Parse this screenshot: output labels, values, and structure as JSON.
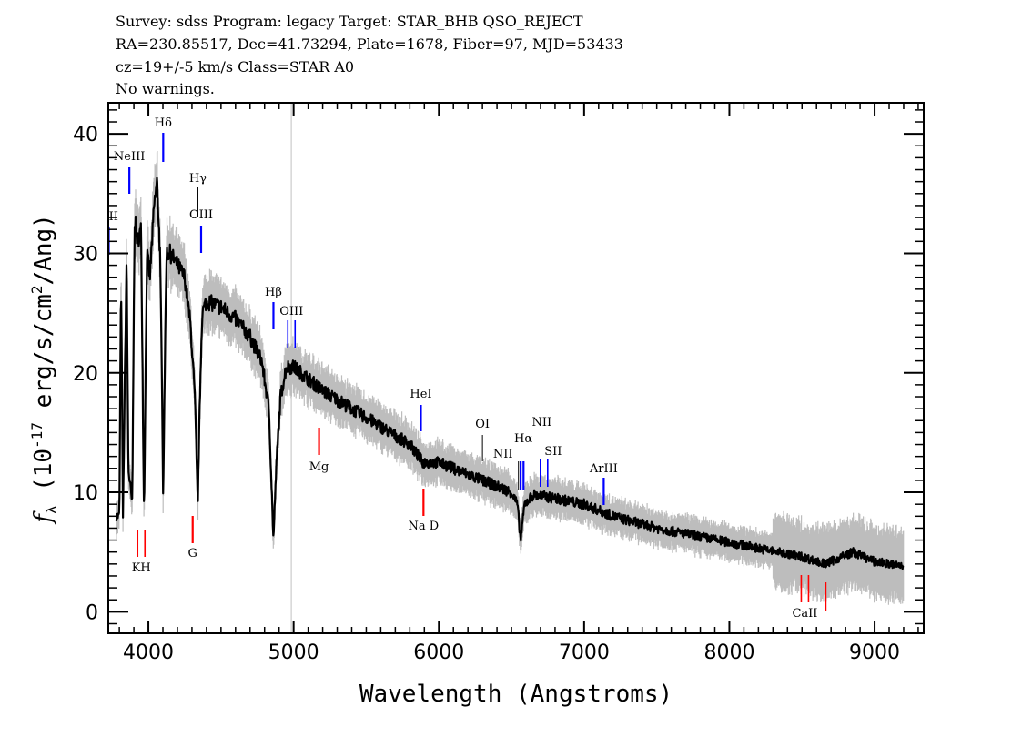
{
  "header": {
    "line1": "Survey: sdss Program: legacy Target: STAR_BHB QSO_REJECT",
    "line2": "RA=230.85517, Dec=41.73294, Plate=1678, Fiber=97, MJD=53433",
    "line3": "cz=19+/-5 km/s Class=STAR A0",
    "line4": "No warnings."
  },
  "chart_data": {
    "type": "line",
    "xlabel": "Wavelength (Angstroms)",
    "ylabel": "f_λ (10^-17 erg/s/cm^2/Ang)",
    "xlim": [
      3724,
      9338
    ],
    "ylim": [
      -1.8,
      42.6
    ],
    "xticks": [
      4000,
      5000,
      6000,
      7000,
      8000,
      9000
    ],
    "yticks": [
      0,
      10,
      20,
      30,
      40
    ],
    "grid": false,
    "colors": {
      "spectrum": "#000000",
      "error_band": "#bdbdbd",
      "emission": "#0000ff",
      "absorption": "#ff0000",
      "reference_line": "#c0c0c0"
    },
    "reference_line_x": 4984,
    "spectrum": {
      "x": [
        3780,
        3800,
        3812,
        3825,
        3850,
        3862,
        3889,
        3905,
        3925,
        3950,
        3970,
        3990,
        4010,
        4040,
        4060,
        4080,
        4095,
        4102,
        4110,
        4125,
        4150,
        4200,
        4250,
        4290,
        4320,
        4340,
        4355,
        4370,
        4400,
        4500,
        4600,
        4700,
        4780,
        4830,
        4861,
        4880,
        4910,
        4950,
        5000,
        5100,
        5200,
        5400,
        5600,
        5800,
        5890,
        6000,
        6200,
        6400,
        6500,
        6540,
        6563,
        6590,
        6650,
        6800,
        7000,
        7200,
        7500,
        8000,
        8500,
        8660,
        8850,
        9000,
        9200
      ],
      "y": [
        8,
        8,
        28,
        8,
        30,
        12,
        9,
        33,
        31,
        32,
        8,
        30,
        28,
        34,
        36,
        30,
        18,
        9,
        18,
        30,
        30,
        29,
        28,
        24,
        18,
        9,
        18,
        25,
        26,
        25.5,
        24.5,
        23,
        21,
        17,
        6,
        12,
        18,
        20.5,
        20.5,
        19.5,
        18.5,
        17,
        15.5,
        14,
        12.5,
        12.5,
        11.5,
        10.5,
        10,
        9,
        6,
        9,
        9.8,
        9.5,
        9,
        8,
        7,
        5.8,
        4.6,
        4,
        5,
        4.2,
        3.8
      ]
    },
    "lines": [
      {
        "label": "OII",
        "wavelength": 3727,
        "kind": "emission"
      },
      {
        "label": "NeIII",
        "wavelength": 3869,
        "kind": "emission"
      },
      {
        "label": "Hδ",
        "wavelength": 4102,
        "kind": "emission"
      },
      {
        "label": "Hγ",
        "wavelength": 4341,
        "kind": "emission-thin"
      },
      {
        "label": "OIII",
        "wavelength": 4363,
        "kind": "emission"
      },
      {
        "label": "Hβ",
        "wavelength": 4861,
        "kind": "emission"
      },
      {
        "label": "OIII",
        "wavelength": 4985,
        "kind": "emission-pair"
      },
      {
        "label": "HeI",
        "wavelength": 5876,
        "kind": "emission"
      },
      {
        "label": "OI",
        "wavelength": 6300,
        "kind": "emission-thin"
      },
      {
        "label": "NII",
        "wavelength": 6548,
        "kind": "emission-thin"
      },
      {
        "label": "Hα",
        "wavelength": 6563,
        "kind": "emission"
      },
      {
        "label": "NII",
        "wavelength": 6583,
        "kind": "emission"
      },
      {
        "label": "SII",
        "wavelength": 6724,
        "kind": "emission-pair"
      },
      {
        "label": "ArIII",
        "wavelength": 7135,
        "kind": "emission"
      },
      {
        "label": "KH",
        "wavelength": 3951,
        "kind": "absorption-pair"
      },
      {
        "label": "G",
        "wavelength": 4305,
        "kind": "absorption"
      },
      {
        "label": "Mg",
        "wavelength": 5175,
        "kind": "absorption"
      },
      {
        "label": "Na D",
        "wavelength": 5894,
        "kind": "absorption"
      },
      {
        "label": "CaII",
        "wavelength": 8520,
        "kind": "absorption-pair"
      },
      {
        "label": "",
        "wavelength": 8662,
        "kind": "absorption"
      }
    ]
  }
}
